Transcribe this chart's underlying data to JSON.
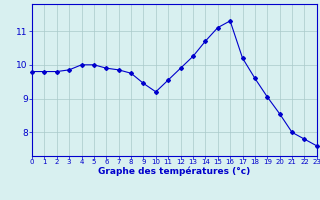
{
  "hours": [
    0,
    1,
    2,
    3,
    4,
    5,
    6,
    7,
    8,
    9,
    10,
    11,
    12,
    13,
    14,
    15,
    16,
    17,
    18,
    19,
    20,
    21,
    22,
    23
  ],
  "temps": [
    9.8,
    9.8,
    9.8,
    9.85,
    10.0,
    10.0,
    9.9,
    9.85,
    9.75,
    9.45,
    9.2,
    9.55,
    9.9,
    10.25,
    10.7,
    11.1,
    11.3,
    10.2,
    9.6,
    9.05,
    8.55,
    8.0,
    7.8,
    7.6
  ],
  "line_color": "#0000CC",
  "marker": "D",
  "marker_size": 2.0,
  "bg_color": "#D8F0F0",
  "grid_color": "#AACACA",
  "xlabel": "Graphe des températures (°c)",
  "xlabel_color": "#0000CC",
  "yticks": [
    8,
    9,
    10,
    11
  ],
  "xticks": [
    0,
    1,
    2,
    3,
    4,
    5,
    6,
    7,
    8,
    9,
    10,
    11,
    12,
    13,
    14,
    15,
    16,
    17,
    18,
    19,
    20,
    21,
    22,
    23
  ],
  "xlim": [
    0,
    23
  ],
  "ylim": [
    7.3,
    11.8
  ],
  "spine_color": "#0000CC",
  "tick_color": "#0000CC",
  "xtick_fontsize": 5.0,
  "ytick_fontsize": 6.5,
  "xlabel_fontsize": 6.5
}
